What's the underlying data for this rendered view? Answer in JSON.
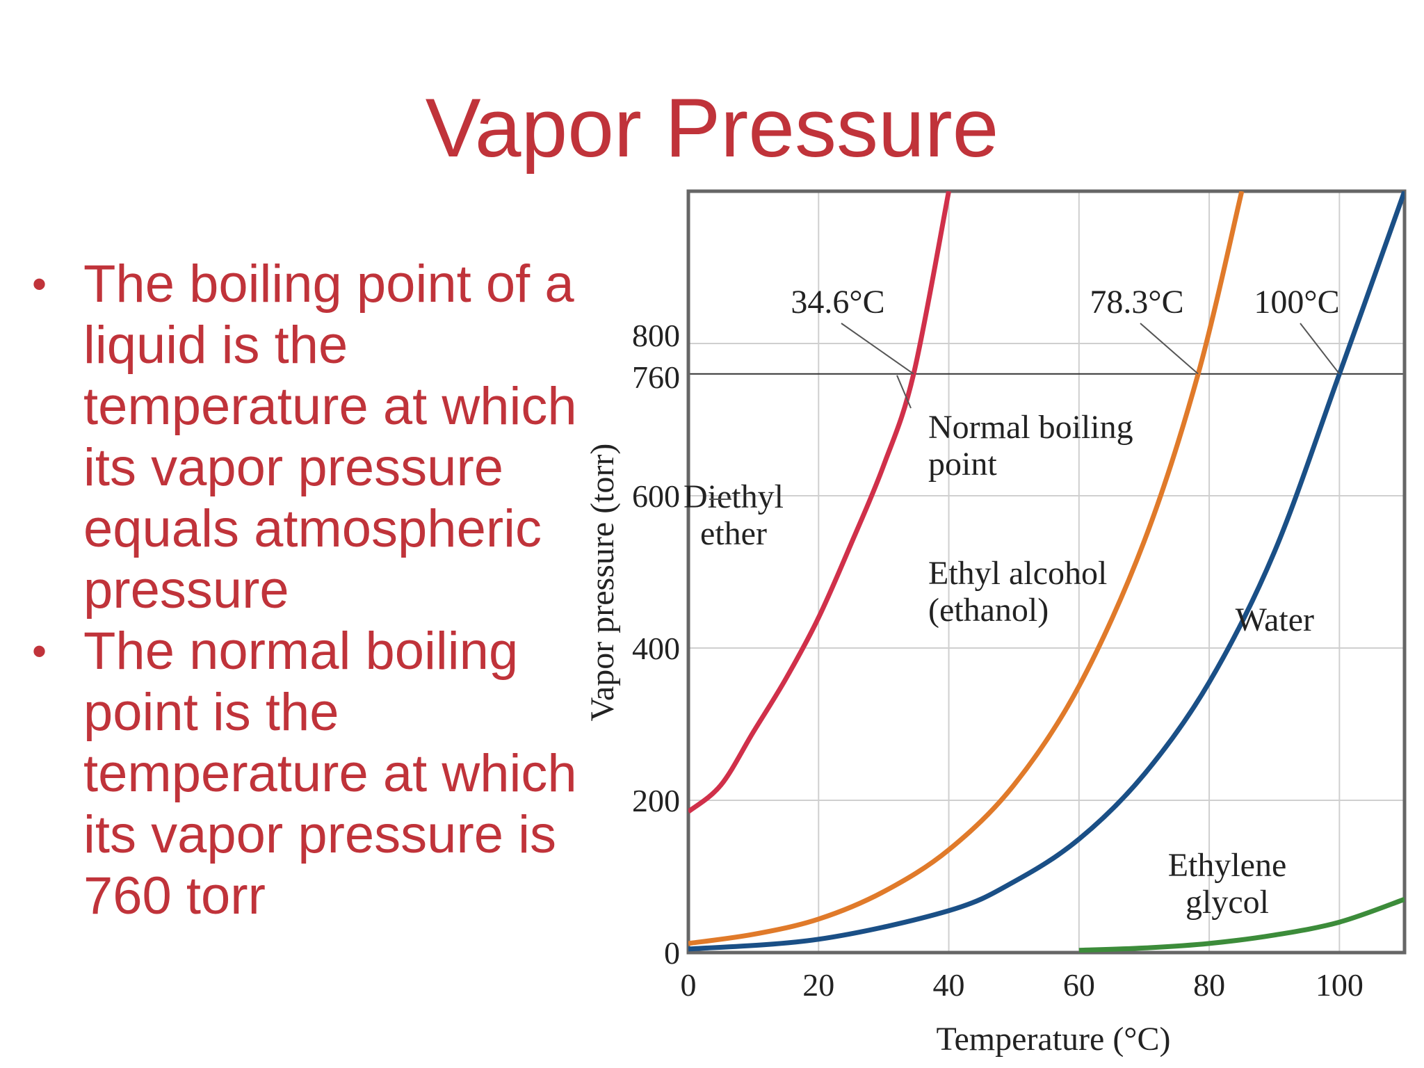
{
  "slide": {
    "title": "Vapor Pressure",
    "bullets": [
      "The boiling point of a liquid is the temperature at which its vapor pressure equals atmospheric pressure",
      "The normal boiling point is the temperature at which its vapor pressure is 760 torr"
    ]
  },
  "colors": {
    "title": "#c0333a",
    "diethyl_ether": "#d0304a",
    "ethanol": "#e07a2a",
    "water": "#1a4f86",
    "ethylene_glycol": "#3c8c3a"
  },
  "chart_data": {
    "type": "line",
    "xlabel": "Temperature (°C)",
    "ylabel": "Vapor pressure (torr)",
    "xlim": [
      0,
      110
    ],
    "ylim": [
      0,
      1000
    ],
    "x_ticks": [
      0,
      20,
      40,
      60,
      80,
      100
    ],
    "y_ticks": [
      0,
      200,
      400,
      600,
      760,
      800
    ],
    "grid": true,
    "reference_line": {
      "y": 760
    },
    "series": [
      {
        "name": "Diethyl\nether",
        "x": [
          0,
          5,
          10,
          15,
          20,
          25,
          30,
          34.6,
          40
        ],
        "y": [
          185,
          220,
          290,
          360,
          440,
          537,
          640,
          760,
          1000
        ]
      },
      {
        "name": "Ethyl alcohol\n(ethanol)",
        "x": [
          0,
          10,
          20,
          30,
          40,
          50,
          60,
          70,
          78.3,
          85
        ],
        "y": [
          12,
          24,
          44,
          80,
          135,
          220,
          350,
          540,
          760,
          1000
        ]
      },
      {
        "name": "Water",
        "x": [
          0,
          20,
          40,
          50,
          60,
          70,
          80,
          90,
          100,
          110
        ],
        "y": [
          4.6,
          17.5,
          55,
          93,
          149,
          234,
          355,
          526,
          760,
          1000
        ]
      },
      {
        "name": "Ethylene\nglycol",
        "x": [
          60,
          70,
          80,
          90,
          100,
          110
        ],
        "y": [
          3,
          6,
          12,
          23,
          40,
          70
        ]
      }
    ],
    "annotations": {
      "ether_bp": "34.6°C",
      "ethanol_bp": "78.3°C",
      "water_bp": "100°C",
      "normal_bp": "Normal boiling\npoint"
    }
  }
}
